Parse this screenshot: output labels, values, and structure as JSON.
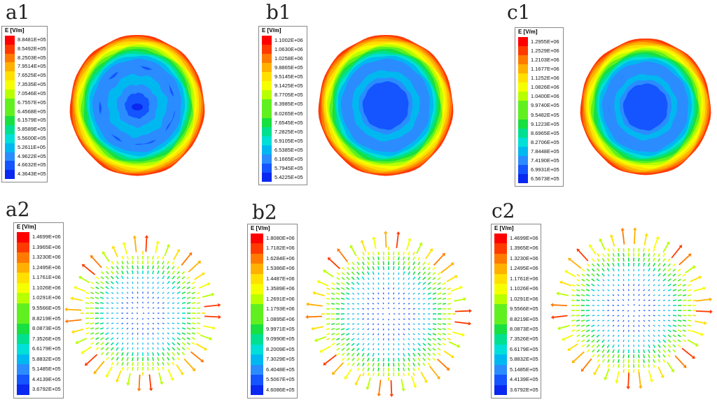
{
  "palette": [
    "#ff0000",
    "#ff3a00",
    "#ff7a00",
    "#ffb000",
    "#ffe000",
    "#f5ff00",
    "#b8ff00",
    "#60f020",
    "#18e040",
    "#00e090",
    "#00e0d8",
    "#00b8f0",
    "#2a8cff",
    "#1455ff",
    "#0a28f0"
  ],
  "panels": [
    {
      "id": "a1",
      "label": "a1",
      "kind": "contour",
      "legend_title": "E [V/m]",
      "legend_values": [
        "8.8481E+05",
        "8.5492E+05",
        "8.2503E+05",
        "7.9514E+05",
        "7.6525E+05",
        "7.3535E+05",
        "7.0546E+05",
        "6.7557E+05",
        "6.4568E+05",
        "6.1579E+05",
        "5.8589E+05",
        "5.5600E+05",
        "5.2611E+05",
        "4.9622E+05",
        "4.6632E+05",
        "4.3643E+05"
      ]
    },
    {
      "id": "b1",
      "label": "b1",
      "kind": "contour",
      "legend_title": "E [V/m]",
      "legend_values": [
        "1.1002E+06",
        "1.0630E+06",
        "1.0258E+06",
        "9.8865E+05",
        "9.5145E+05",
        "9.1425E+05",
        "8.7705E+05",
        "8.3985E+05",
        "8.0265E+05",
        "7.6545E+05",
        "7.2825E+05",
        "6.9105E+05",
        "6.5385E+05",
        "6.1665E+05",
        "5.7945E+05",
        "5.4225E+05"
      ]
    },
    {
      "id": "c1",
      "label": "c1",
      "kind": "contour",
      "legend_title": "E [V/m]",
      "legend_values": [
        "1.2955E+06",
        "1.2529E+06",
        "1.2103E+06",
        "1.1677E+06",
        "1.1252E+06",
        "1.0826E+06",
        "1.0400E+06",
        "9.9740E+05",
        "9.5482E+05",
        "9.1223E+05",
        "8.6965E+05",
        "8.2706E+05",
        "7.8448E+05",
        "7.4190E+05",
        "6.9931E+05",
        "6.5673E+05"
      ]
    },
    {
      "id": "a2",
      "label": "a2",
      "kind": "vector",
      "legend_title": "E [V/m]",
      "legend_values": [
        "1.4699E+06",
        "1.3965E+06",
        "1.3230E+06",
        "1.2495E+06",
        "1.1761E+06",
        "1.1026E+06",
        "1.0291E+06",
        "9.5566E+05",
        "8.8219E+05",
        "8.0873E+05",
        "7.3526E+05",
        "6.6179E+05",
        "5.8832E+05",
        "5.1485E+05",
        "4.4139E+05",
        "3.6792E+05"
      ]
    },
    {
      "id": "b2",
      "label": "b2",
      "kind": "vector",
      "legend_title": "E [V/m]",
      "legend_values": [
        "1.8080E+06",
        "1.7182E+06",
        "1.6284E+06",
        "1.5386E+06",
        "1.4487E+06",
        "1.3589E+06",
        "1.2691E+06",
        "1.1793E+06",
        "1.0895E+06",
        "9.9971E+05",
        "9.0990E+05",
        "8.2009E+05",
        "7.3029E+05",
        "6.4048E+05",
        "5.5067E+05",
        "4.6086E+05"
      ]
    },
    {
      "id": "c2",
      "label": "c2",
      "kind": "vector",
      "legend_title": "E [V/m]",
      "legend_values": [
        "1.4699E+06",
        "1.3965E+06",
        "1.3230E+06",
        "1.2495E+06",
        "1.1761E+06",
        "1.1026E+06",
        "1.0291E+06",
        "9.5566E+05",
        "8.8219E+05",
        "8.0873E+05",
        "7.3526E+05",
        "6.6179E+05",
        "5.8832E+05",
        "5.1485E+05",
        "4.4139E+05",
        "3.6792E+05"
      ]
    }
  ]
}
